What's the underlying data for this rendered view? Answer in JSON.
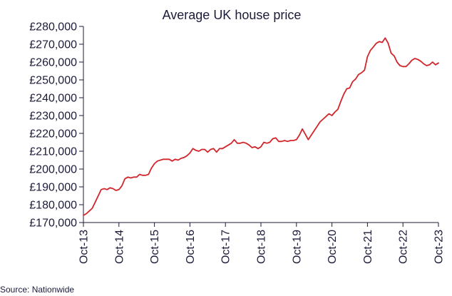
{
  "source": "Source: Nationwide",
  "colors": {
    "line": "#d1262b",
    "axis": "#1b1b3a",
    "text": "#1b1b3a"
  },
  "chart_data": {
    "type": "line",
    "title": "Average UK house price",
    "xlabel": "",
    "ylabel": "",
    "grid": false,
    "legend": "none",
    "ylim": [
      170000,
      280000
    ],
    "xlim": [
      "2013-10",
      "2023-10"
    ],
    "y_ticks": [
      170000,
      180000,
      190000,
      200000,
      210000,
      220000,
      230000,
      240000,
      250000,
      260000,
      270000,
      280000
    ],
    "y_tick_labels": [
      "£170,000",
      "£180,000",
      "£190,000",
      "£200,000",
      "£210,000",
      "£220,000",
      "£230,000",
      "£240,000",
      "£250,000",
      "£260,000",
      "£270,000",
      "£280,000"
    ],
    "x_ticks": [
      "2013-10",
      "2014-10",
      "2015-10",
      "2016-10",
      "2017-10",
      "2018-10",
      "2019-10",
      "2020-10",
      "2021-10",
      "2022-10",
      "2023-10"
    ],
    "x_tick_labels": [
      "Oct-13",
      "Oct-14",
      "Oct-15",
      "Oct-16",
      "Oct-17",
      "Oct-18",
      "Oct-19",
      "Oct-20",
      "Oct-21",
      "Oct-22",
      "Oct-23"
    ],
    "series": [
      {
        "x": [
          "2013-10",
          "2013-11",
          "2013-12",
          "2014-01",
          "2014-02",
          "2014-03",
          "2014-04",
          "2014-05",
          "2014-06",
          "2014-07",
          "2014-08",
          "2014-09",
          "2014-10",
          "2014-11",
          "2014-12",
          "2015-01",
          "2015-02",
          "2015-03",
          "2015-04",
          "2015-05",
          "2015-06",
          "2015-07",
          "2015-08",
          "2015-09",
          "2015-10",
          "2015-11",
          "2015-12",
          "2016-01",
          "2016-02",
          "2016-03",
          "2016-04",
          "2016-05",
          "2016-06",
          "2016-07",
          "2016-08",
          "2016-09",
          "2016-10",
          "2016-11",
          "2016-12",
          "2017-01",
          "2017-02",
          "2017-03",
          "2017-04",
          "2017-05",
          "2017-06",
          "2017-07",
          "2017-08",
          "2017-09",
          "2017-10",
          "2017-11",
          "2017-12",
          "2018-01",
          "2018-02",
          "2018-03",
          "2018-04",
          "2018-05",
          "2018-06",
          "2018-07",
          "2018-08",
          "2018-09",
          "2018-10",
          "2018-11",
          "2018-12",
          "2019-01",
          "2019-02",
          "2019-03",
          "2019-04",
          "2019-05",
          "2019-06",
          "2019-07",
          "2019-08",
          "2019-09",
          "2019-10",
          "2019-11",
          "2019-12",
          "2020-01",
          "2020-02",
          "2020-03",
          "2020-04",
          "2020-05",
          "2020-06",
          "2020-07",
          "2020-08",
          "2020-09",
          "2020-10",
          "2020-11",
          "2020-12",
          "2021-01",
          "2021-02",
          "2021-03",
          "2021-04",
          "2021-05",
          "2021-06",
          "2021-07",
          "2021-08",
          "2021-09",
          "2021-10",
          "2021-11",
          "2021-12",
          "2022-01",
          "2022-02",
          "2022-03",
          "2022-04",
          "2022-05",
          "2022-06",
          "2022-07",
          "2022-08",
          "2022-09",
          "2022-10",
          "2022-11",
          "2022-12",
          "2023-01",
          "2023-02",
          "2023-03",
          "2023-04",
          "2023-05",
          "2023-06",
          "2023-07",
          "2023-08",
          "2023-09",
          "2023-10"
        ],
        "values": [
          174000,
          175000,
          176500,
          178000,
          181500,
          185000,
          188500,
          189000,
          188500,
          189500,
          189000,
          188000,
          188500,
          190500,
          194500,
          195500,
          195000,
          195500,
          195500,
          197000,
          196500,
          196500,
          197000,
          200500,
          203000,
          204500,
          205000,
          205500,
          205500,
          205500,
          204500,
          205500,
          205000,
          206000,
          206500,
          207500,
          209000,
          211500,
          210500,
          210000,
          211000,
          211000,
          209500,
          211000,
          211500,
          209500,
          211500,
          211500,
          212500,
          213500,
          214500,
          216500,
          214500,
          214500,
          215000,
          214500,
          213500,
          212000,
          212500,
          211500,
          212500,
          215000,
          214500,
          215000,
          217000,
          217500,
          215500,
          215500,
          216000,
          215500,
          216000,
          216000,
          216500,
          219000,
          222500,
          219500,
          216500,
          219000,
          221500,
          224000,
          226500,
          228000,
          229500,
          231000,
          230000,
          232000,
          233500,
          238000,
          242000,
          245000,
          245500,
          249000,
          250500,
          253000,
          254000,
          255500,
          263000,
          266500,
          268500,
          270500,
          271500,
          271000,
          273500,
          270500,
          265000,
          263500,
          260000,
          258000,
          257500,
          257500,
          259000,
          261000,
          262000,
          261500,
          260500,
          259000,
          258000,
          258500,
          260000,
          258500,
          259500
        ]
      }
    ]
  }
}
